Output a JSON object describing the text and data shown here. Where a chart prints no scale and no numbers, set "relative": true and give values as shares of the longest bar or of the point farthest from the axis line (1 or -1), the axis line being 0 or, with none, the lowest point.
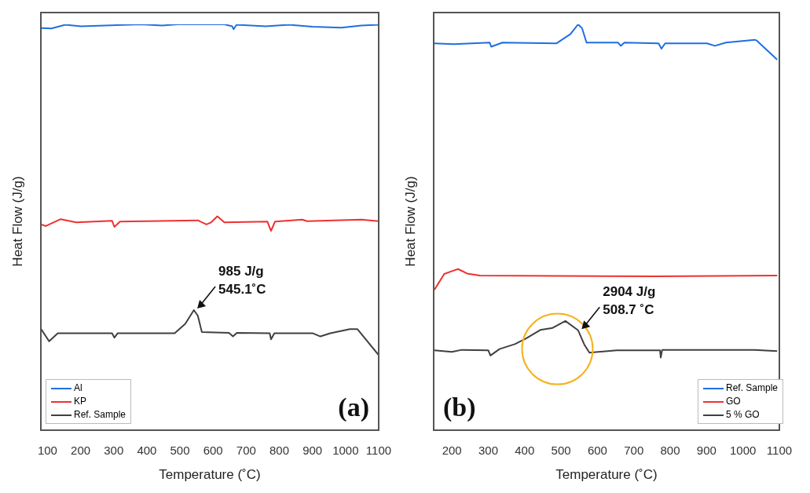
{
  "chart_data": [
    {
      "type": "line",
      "relative": true,
      "xlabel": "Temperature (˚C)",
      "ylabel": "Heat Flow (J/g)",
      "xlim": [
        80,
        1100
      ],
      "xticks": [
        100,
        200,
        300,
        400,
        500,
        600,
        700,
        800,
        900,
        1000,
        1100
      ],
      "legend": "bottom left",
      "annotations": [
        {
          "text": "985 J/g\n545.1˚C",
          "x": 545.1,
          "y": 0.296
        },
        "(a)"
      ],
      "series": [
        {
          "name": "Al",
          "color": "#1f6fe0",
          "x": [
            81,
            112,
            154,
            201,
            382,
            446,
            493,
            634,
            658,
            662,
            671,
            759,
            829,
            900,
            987,
            1048,
            1100
          ],
          "values": [
            0.991,
            0.99,
            0.999,
            0.995,
            1.0,
            0.997,
            1.0,
            1.0,
            0.995,
            0.988,
            0.999,
            0.995,
            0.999,
            0.994,
            0.992,
            0.997,
            0.999
          ]
        },
        {
          "name": "KP",
          "color": "#f03030",
          "x": [
            81,
            95,
            140,
            187,
            295,
            302,
            319,
            554,
            580,
            594,
            613,
            634,
            764,
            775,
            787,
            869,
            884,
            1048,
            1100
          ],
          "values": [
            0.507,
            0.503,
            0.52,
            0.512,
            0.516,
            0.501,
            0.514,
            0.517,
            0.507,
            0.512,
            0.527,
            0.512,
            0.514,
            0.491,
            0.514,
            0.519,
            0.515,
            0.519,
            0.515
          ]
        },
        {
          "name": "Ref. Sample",
          "color": "#404040",
          "x": [
            81,
            105,
            131,
            295,
            302,
            312,
            484,
            516,
            542,
            554,
            566,
            648,
            660,
            672,
            771,
            775,
            785,
            900,
            924,
            954,
            1013,
            1036,
            1100
          ],
          "values": [
            0.249,
            0.219,
            0.239,
            0.239,
            0.228,
            0.239,
            0.239,
            0.262,
            0.296,
            0.282,
            0.242,
            0.24,
            0.231,
            0.24,
            0.239,
            0.224,
            0.239,
            0.239,
            0.231,
            0.239,
            0.249,
            0.249,
            0.185
          ]
        }
      ]
    },
    {
      "type": "line",
      "relative": true,
      "xlabel": "Temperature (˚C)",
      "ylabel": "Heat Flow (J/g)",
      "xlim": [
        150,
        1100
      ],
      "xticks": [
        200,
        300,
        400,
        500,
        600,
        700,
        800,
        900,
        1000,
        1100
      ],
      "legend": "bottom right",
      "annotations": [
        {
          "text": "2904 J/g\n508.7 ˚C",
          "x": 550,
          "y": 0.245
        },
        "(b)"
      ],
      "series": [
        {
          "name": "Ref. Sample",
          "color": "#1f6fe0",
          "x": [
            152,
            206,
            304,
            308,
            339,
            487,
            526,
            547,
            558,
            570,
            657,
            664,
            674,
            768,
            776,
            786,
            901,
            923,
            953,
            1032,
            1038,
            1094
          ],
          "values": [
            0.953,
            0.951,
            0.955,
            0.945,
            0.955,
            0.953,
            0.976,
            1.0,
            0.99,
            0.955,
            0.955,
            0.947,
            0.955,
            0.953,
            0.94,
            0.953,
            0.953,
            0.947,
            0.955,
            0.962,
            0.96,
            0.913
          ]
        },
        {
          "name": "GO",
          "color": "#f03030",
          "x": [
            152,
            179,
            200,
            217,
            242,
            277,
            761,
            1094
          ],
          "values": [
            0.346,
            0.385,
            0.392,
            0.397,
            0.386,
            0.381,
            0.379,
            0.381
          ]
        },
        {
          "name": "5 % GO",
          "color": "#404040",
          "x": [
            152,
            200,
            227,
            300,
            306,
            331,
            373,
            402,
            443,
            477,
            512,
            547,
            564,
            578,
            653,
            772,
            774,
            778,
            1032,
            1094
          ],
          "values": [
            0.197,
            0.193,
            0.198,
            0.197,
            0.184,
            0.2,
            0.212,
            0.225,
            0.247,
            0.252,
            0.269,
            0.246,
            0.211,
            0.191,
            0.197,
            0.197,
            0.179,
            0.198,
            0.198,
            0.195
          ]
        }
      ]
    }
  ]
}
